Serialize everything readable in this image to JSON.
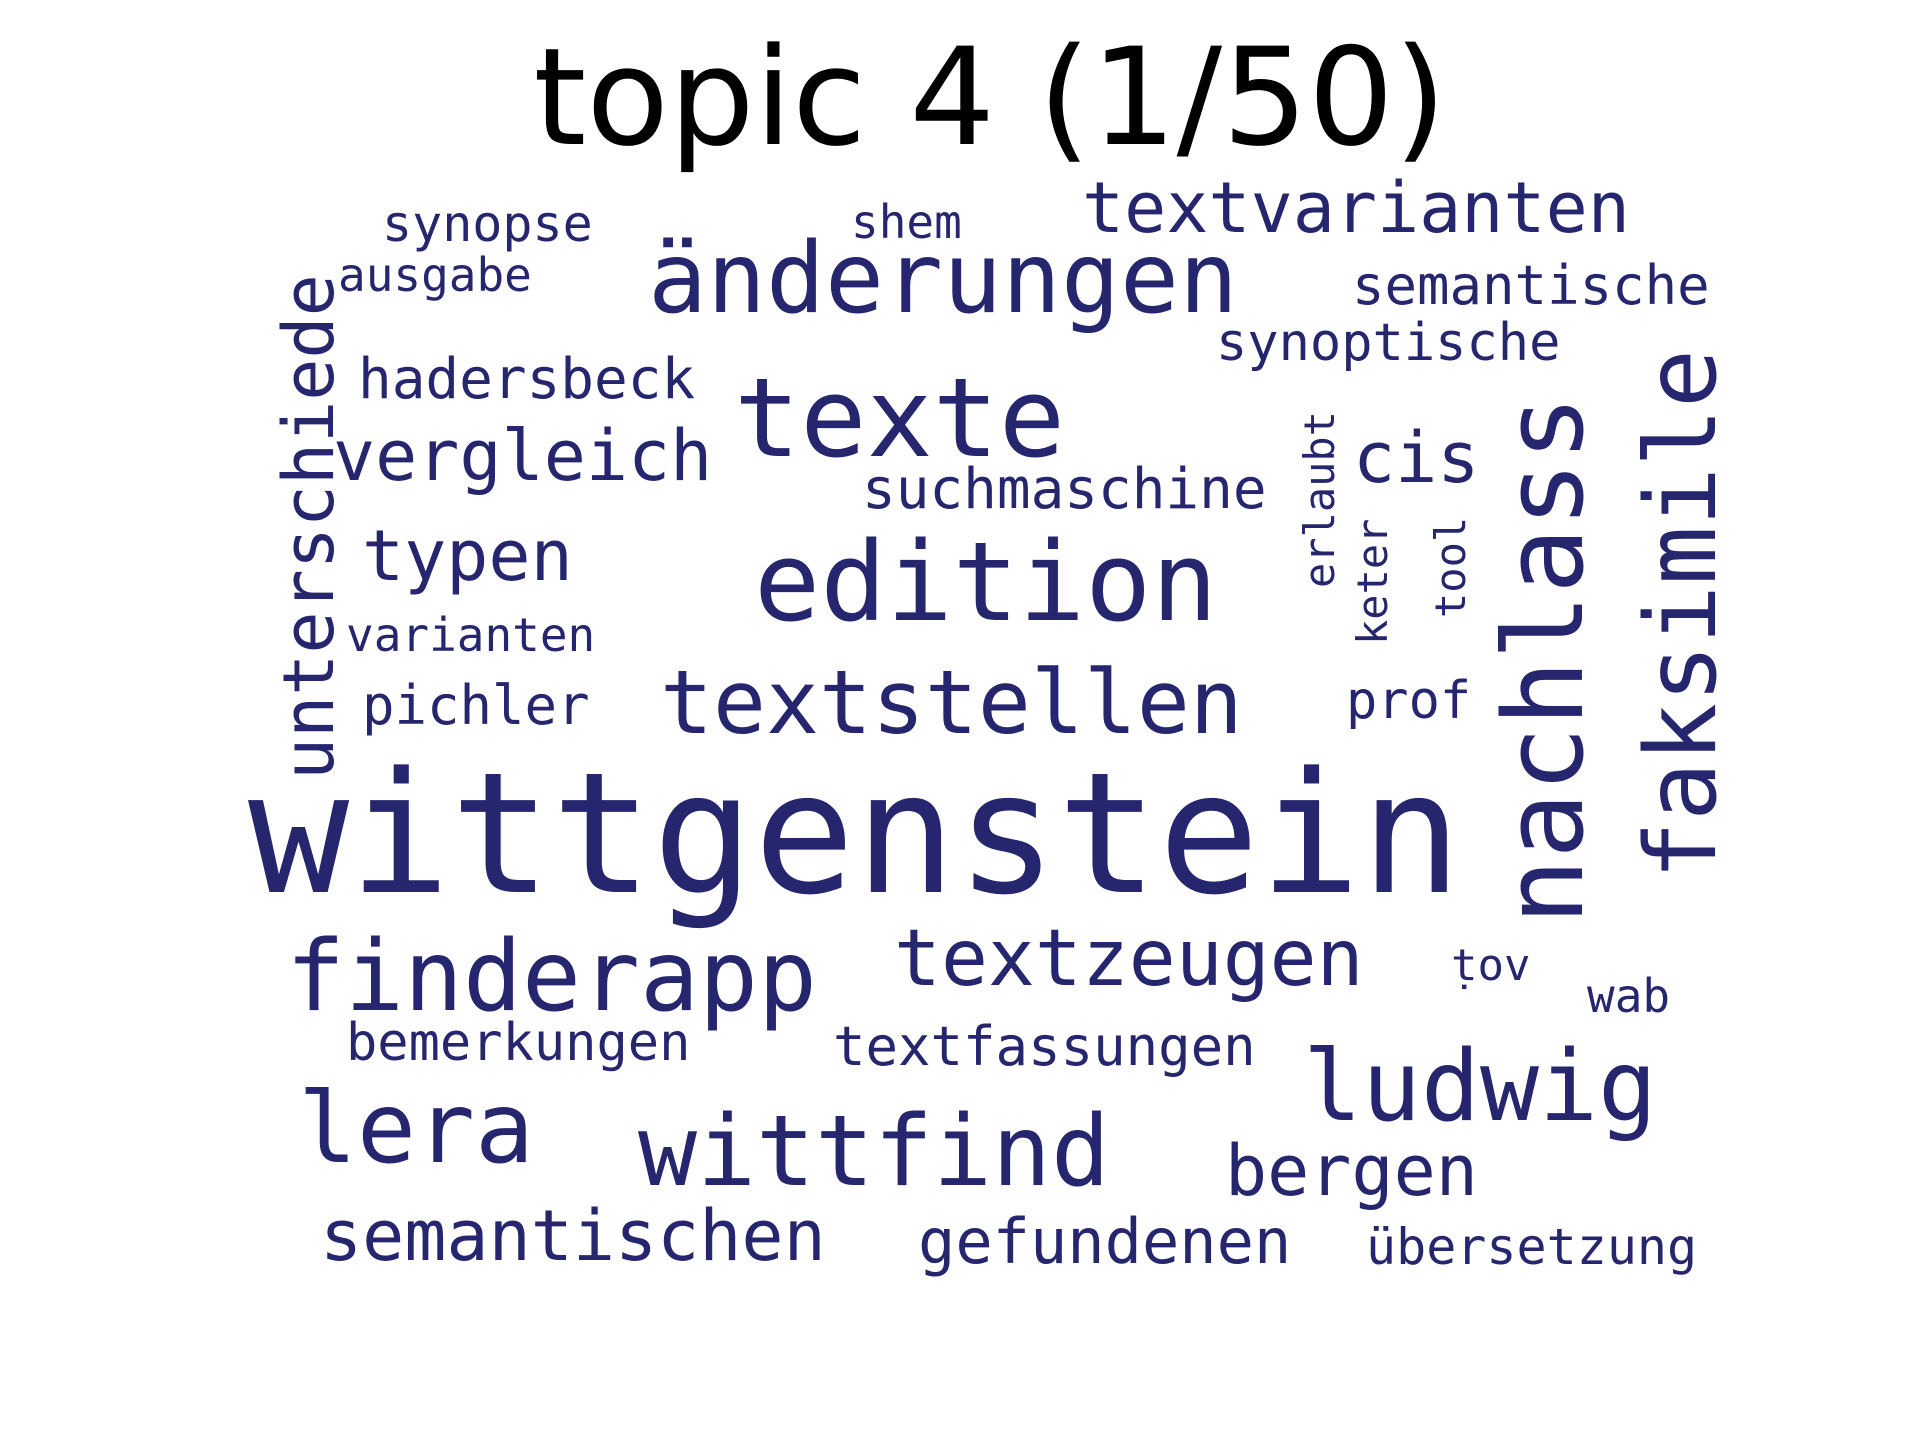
{
  "title": "topic 4 (1/50)",
  "word_color": "#26266e",
  "words": [
    {
      "text": "wittgenstein"
    },
    {
      "text": "texte"
    },
    {
      "text": "edition"
    },
    {
      "text": "änderungen"
    },
    {
      "text": "nachlass"
    },
    {
      "text": "faksimile"
    },
    {
      "text": "finderapp"
    },
    {
      "text": "wittfind"
    },
    {
      "text": "ludwig"
    },
    {
      "text": "lera"
    },
    {
      "text": "textstellen"
    },
    {
      "text": "textzeugen"
    },
    {
      "text": "textvarianten"
    },
    {
      "text": "unterschiede"
    },
    {
      "text": "vergleich"
    },
    {
      "text": "typen"
    },
    {
      "text": "cis"
    },
    {
      "text": "bergen"
    },
    {
      "text": "semantischen"
    },
    {
      "text": "gefundenen"
    },
    {
      "text": "hadersbeck"
    },
    {
      "text": "suchmaschine"
    },
    {
      "text": "semantische"
    },
    {
      "text": "synoptische"
    },
    {
      "text": "synopse"
    },
    {
      "text": "ausgabe"
    },
    {
      "text": "shem"
    },
    {
      "text": "varianten"
    },
    {
      "text": "pichler"
    },
    {
      "text": "prof"
    },
    {
      "text": "bemerkungen"
    },
    {
      "text": "textfassungen"
    },
    {
      "text": "übersetzung"
    },
    {
      "text": "ṭov"
    },
    {
      "text": "wab"
    },
    {
      "text": "erlaubt"
    },
    {
      "text": "keter"
    },
    {
      "text": "tool"
    }
  ]
}
